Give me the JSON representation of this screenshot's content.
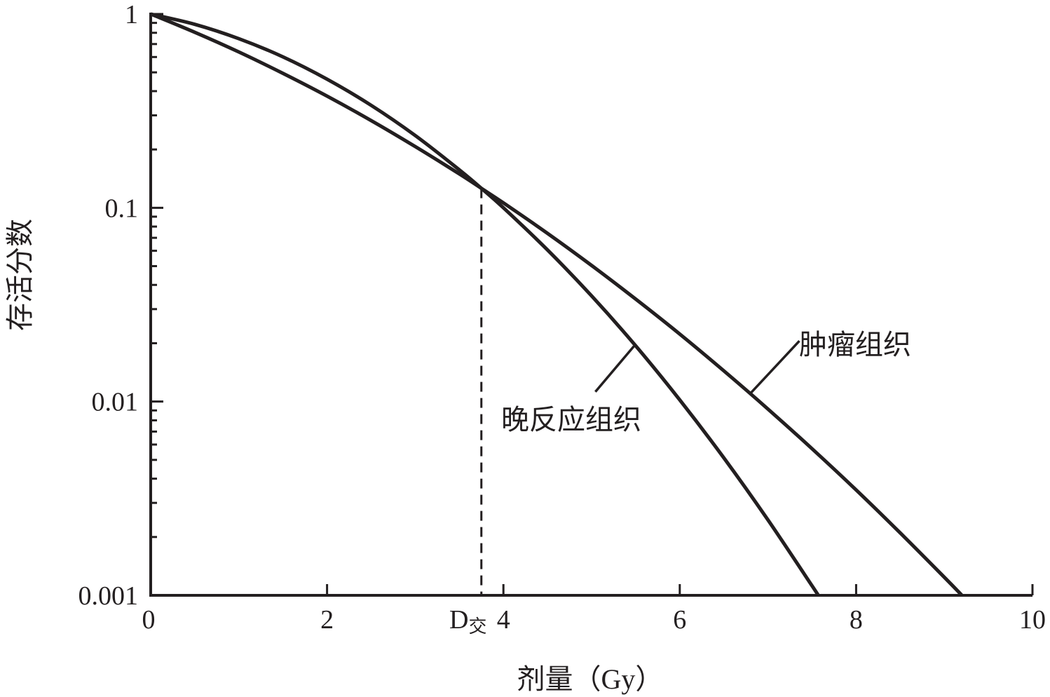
{
  "chart_data": {
    "type": "line",
    "title": "",
    "xlabel": "剂量（Gy）",
    "ylabel": "存活分数",
    "xlim": [
      0,
      10
    ],
    "ylim": [
      0.001,
      1
    ],
    "yscale": "log",
    "grid": false,
    "x_ticks": [
      "0",
      "2",
      "4",
      "6",
      "8",
      "10"
    ],
    "x_tick_values": [
      0,
      2,
      4,
      6,
      8,
      10
    ],
    "y_ticks": [
      "1",
      "0.1",
      "0.01",
      "0.001"
    ],
    "y_tick_values": [
      1,
      0.1,
      0.01,
      0.001
    ],
    "crossover": {
      "label_main": "D",
      "label_sub": "交",
      "x": 3.75,
      "y": 0.126
    },
    "series": [
      {
        "name": "肿瘤组织",
        "x": [
          0,
          0.5,
          1,
          1.5,
          2,
          2.5,
          3,
          3.5,
          3.75,
          4,
          4.5,
          5,
          5.5,
          6,
          6.5,
          7,
          7.5,
          8,
          8.5,
          9,
          9.2
        ],
        "y": [
          1,
          0.805,
          0.637,
          0.494,
          0.377,
          0.282,
          0.207,
          0.1496,
          0.126,
          0.106,
          0.0738,
          0.0504,
          0.0338,
          0.0223,
          0.0144,
          0.00915,
          0.00571,
          0.0035,
          0.0021,
          0.00124,
          0.001
        ],
        "label_point": {
          "x": 6.8,
          "y": 0.011
        }
      },
      {
        "name": "晚反应组织",
        "x": [
          0,
          0.5,
          1,
          1.5,
          2,
          2.5,
          3,
          3.5,
          3.75,
          4,
          4.5,
          5,
          5.5,
          6,
          6.5,
          7,
          7.5,
          7.57
        ],
        "y": [
          1,
          0.885,
          0.746,
          0.601,
          0.461,
          0.338,
          0.236,
          0.157,
          0.126,
          0.1,
          0.0606,
          0.0351,
          0.0194,
          0.0102,
          0.00512,
          0.00245,
          0.00112,
          0.001
        ],
        "label_point": {
          "x": 5.48,
          "y": 0.0193
        }
      }
    ],
    "line_color": "#231f20"
  }
}
